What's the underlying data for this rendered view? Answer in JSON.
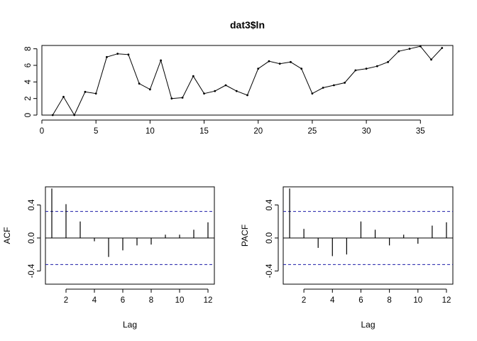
{
  "chart_data": [
    {
      "type": "line",
      "title": "dat3$ln",
      "xlabel": "",
      "ylabel": "",
      "xlim": [
        0,
        38
      ],
      "ylim": [
        0,
        8.4
      ],
      "xticks": [
        0,
        5,
        10,
        15,
        20,
        25,
        30,
        35
      ],
      "xtick_labels": [
        "0",
        "5",
        "10",
        "15",
        "20",
        "25",
        "30",
        "35"
      ],
      "yticks": [
        0,
        2,
        4,
        6,
        8
      ],
      "ytick_labels": [
        "0",
        "2",
        "4",
        "6",
        "8"
      ],
      "markers": true,
      "grid": false,
      "x": [
        1,
        2,
        3,
        4,
        5,
        6,
        7,
        8,
        9,
        10,
        11,
        12,
        13,
        14,
        15,
        16,
        17,
        18,
        19,
        20,
        21,
        22,
        23,
        24,
        25,
        26,
        27,
        28,
        29,
        30,
        31,
        32,
        33,
        34,
        35,
        36,
        37
      ],
      "y": [
        0.0,
        2.2,
        0.0,
        2.8,
        2.6,
        7.0,
        7.4,
        7.3,
        3.8,
        3.1,
        6.6,
        2.0,
        2.1,
        4.7,
        2.6,
        2.9,
        3.6,
        2.9,
        2.4,
        5.6,
        6.5,
        6.2,
        6.4,
        5.6,
        2.6,
        3.3,
        3.6,
        3.9,
        5.4,
        5.6,
        5.9,
        6.4,
        7.7,
        8.0,
        8.3,
        6.7,
        8.1
      ]
    },
    {
      "type": "bar",
      "title": "",
      "xlabel": "Lag",
      "ylabel": "ACF",
      "xlim": [
        0.55,
        12.45
      ],
      "ylim": [
        -0.56,
        0.62
      ],
      "xticks": [
        2,
        4,
        6,
        8,
        10,
        12
      ],
      "xtick_labels": [
        "2",
        "4",
        "6",
        "8",
        "10",
        "12"
      ],
      "yticks": [
        -0.4,
        0.0,
        0.4
      ],
      "ytick_labels": [
        "-0.4",
        "0.0",
        "0.4"
      ],
      "confidence_bounds": [
        -0.322,
        0.322
      ],
      "lags": [
        1,
        2,
        3,
        4,
        5,
        6,
        7,
        8,
        9,
        10,
        11,
        12
      ],
      "values": [
        0.6,
        0.41,
        0.2,
        -0.04,
        -0.23,
        -0.15,
        -0.09,
        -0.08,
        0.04,
        0.04,
        0.1,
        0.19
      ]
    },
    {
      "type": "bar",
      "title": "",
      "xlabel": "Lag",
      "ylabel": "PACF",
      "xlim": [
        0.55,
        12.45
      ],
      "ylim": [
        -0.56,
        0.62
      ],
      "xticks": [
        2,
        4,
        6,
        8,
        10,
        12
      ],
      "xtick_labels": [
        "2",
        "4",
        "6",
        "8",
        "10",
        "12"
      ],
      "yticks": [
        -0.4,
        0.0,
        0.4
      ],
      "ytick_labels": [
        "-0.4",
        "0.0",
        "0.4"
      ],
      "confidence_bounds": [
        -0.322,
        0.322
      ],
      "lags": [
        1,
        2,
        3,
        4,
        5,
        6,
        7,
        8,
        9,
        10,
        11,
        12
      ],
      "values": [
        0.6,
        0.11,
        -0.12,
        -0.22,
        -0.2,
        0.2,
        0.1,
        -0.09,
        0.04,
        -0.07,
        0.15,
        0.19
      ]
    }
  ]
}
